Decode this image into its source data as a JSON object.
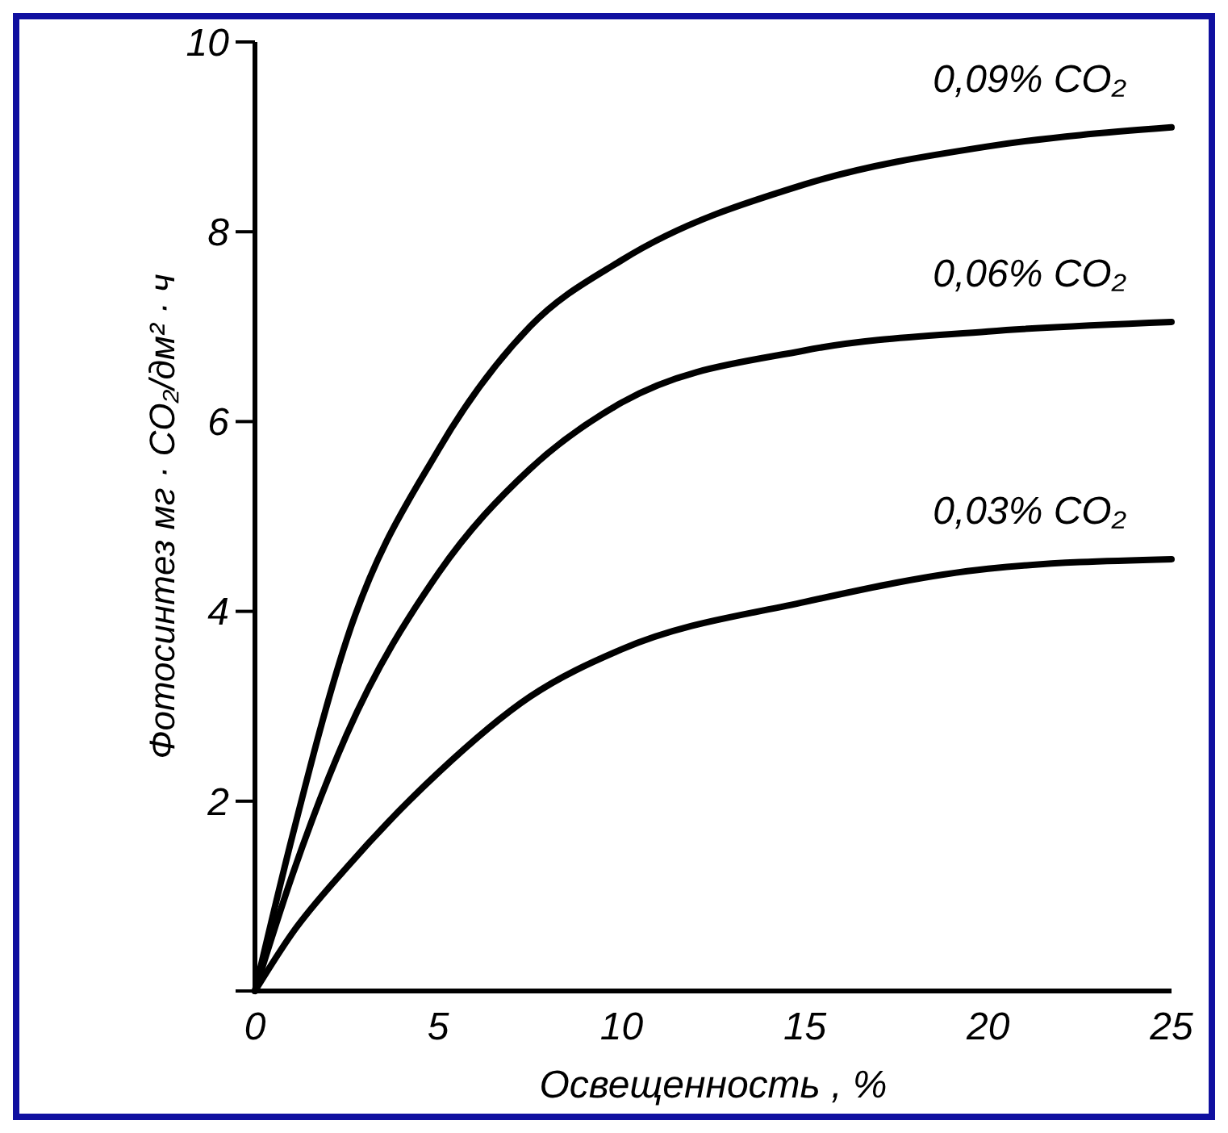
{
  "chart_data": {
    "type": "line",
    "xlabel": "Освещенность , %",
    "ylabel": "Фотосинтез мг · CO₂/дм² · ч",
    "x": [
      0,
      1,
      2.5,
      5,
      7.5,
      10,
      15,
      20,
      25
    ],
    "series": [
      {
        "name": "0,09% CO₂",
        "color": "#000000",
        "values": [
          0,
          1.6,
          3.7,
          5.7,
          7,
          7.7,
          8.5,
          8.9,
          9.1
        ]
      },
      {
        "name": "0,06% CO₂",
        "color": "#000000",
        "values": [
          0,
          1.2,
          2.7,
          4.4,
          5.5,
          6.2,
          6.75,
          6.95,
          7.05
        ]
      },
      {
        "name": "0,03% CO₂",
        "color": "#000000",
        "values": [
          0,
          0.6,
          1.3,
          2.3,
          3.1,
          3.6,
          4.1,
          4.45,
          4.55
        ]
      }
    ],
    "xlim": [
      0,
      25
    ],
    "ylim": [
      0,
      10
    ],
    "xticks": [
      0,
      5,
      10,
      15,
      20,
      25
    ],
    "yticks": [
      {
        "value": 0,
        "label": null
      },
      2,
      4,
      6,
      8,
      10
    ],
    "grid": false,
    "marker": "none",
    "line_style": "solid"
  }
}
